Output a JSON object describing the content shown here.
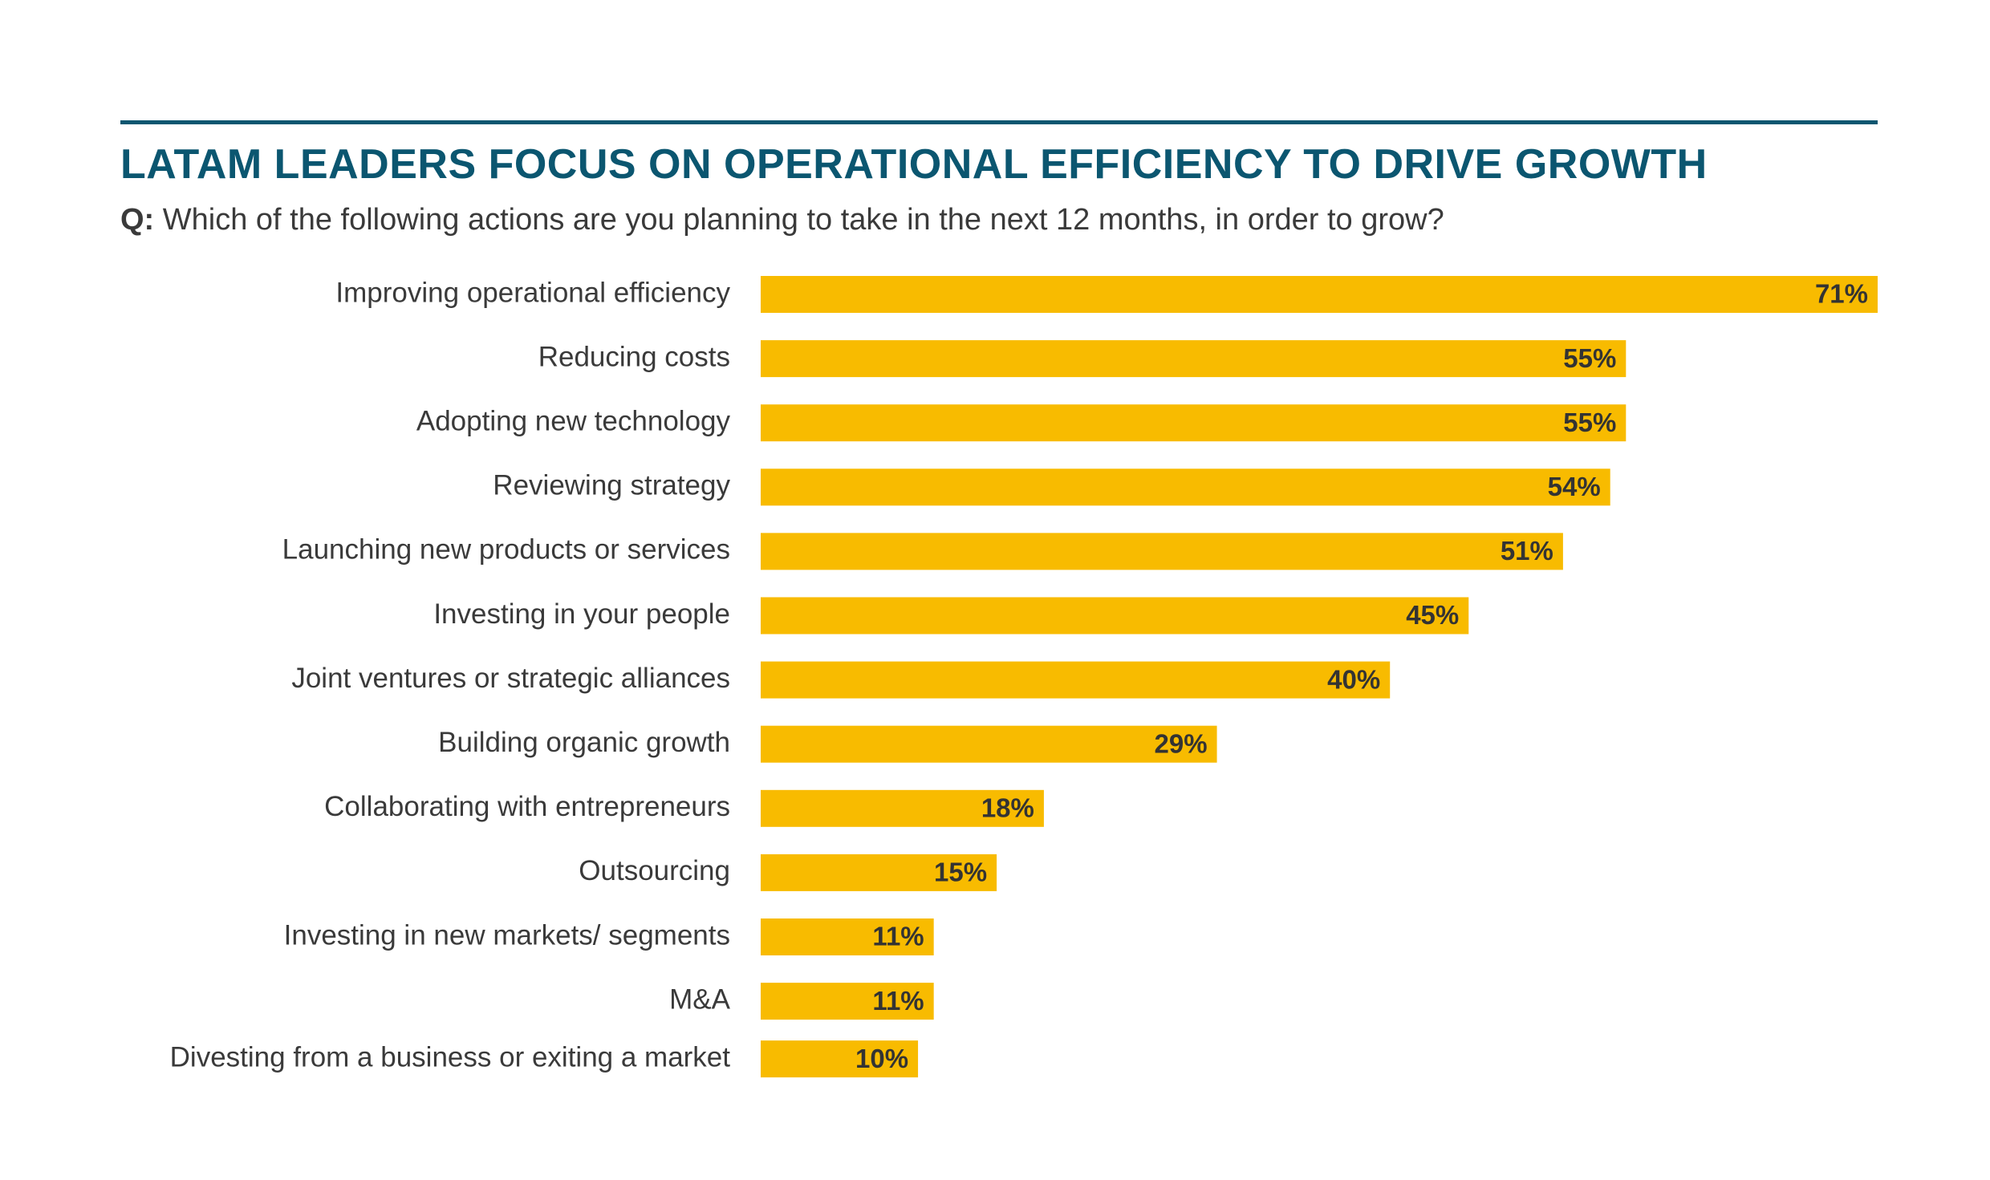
{
  "colors": {
    "title": "#0b5670",
    "rule": "#0b5670",
    "bar": "#f8bb00",
    "label": "#3a3a3a",
    "value": "#333333"
  },
  "chart_data": {
    "type": "bar",
    "orientation": "horizontal",
    "title": "LATAM LEADERS FOCUS ON OPERATIONAL EFFICIENCY TO DRIVE GROWTH",
    "subtitle_prefix": "Q:",
    "subtitle": "Which of the following actions are you planning to take in the next 12 months, in order to grow?",
    "categories": [
      "Improving operational efficiency",
      "Reducing costs",
      "Adopting new technology",
      "Reviewing strategy",
      "Launching new products or services",
      "Investing in your people",
      "Joint ventures or strategic alliances",
      "Building organic growth",
      "Collaborating with entrepreneurs",
      "Outsourcing",
      "Investing in new markets/ segments",
      "M&A",
      "Divesting from a business or exiting a market"
    ],
    "values": [
      71,
      55,
      55,
      54,
      51,
      45,
      40,
      29,
      18,
      15,
      11,
      11,
      10
    ],
    "value_labels": [
      "71%",
      "55%",
      "55%",
      "54%",
      "51%",
      "45%",
      "40%",
      "29%",
      "18%",
      "15%",
      "11%",
      "11%",
      "10%"
    ],
    "xlim": [
      0,
      71
    ],
    "grid": false,
    "legend": "none"
  }
}
